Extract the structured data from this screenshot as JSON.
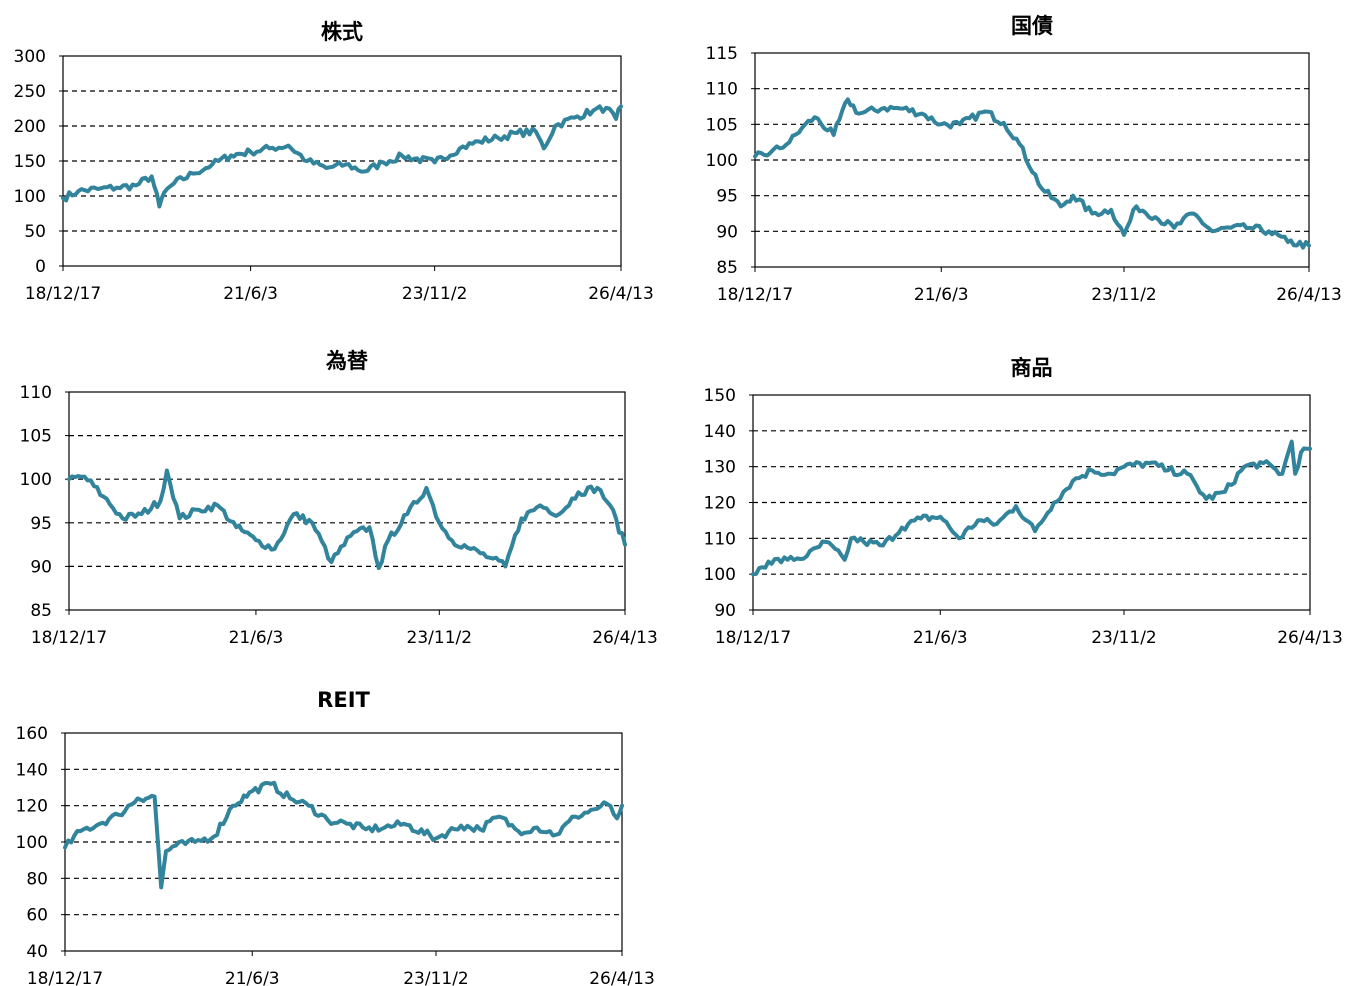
{
  "chart_data": [
    {
      "type": "line",
      "title": "株式",
      "ylim": [
        0,
        300
      ],
      "yticks": [
        "0",
        "50",
        "100",
        "150",
        "200",
        "250",
        "300"
      ],
      "xticks": [
        "18/12/17",
        "21/6/3",
        "23/11/2",
        "26/4/13"
      ],
      "grid": true,
      "color": "#31849B",
      "series": [
        {
          "x": [
            "18/12/17",
            "19/3/1",
            "19/6/1",
            "19/9/1",
            "19/12/1",
            "20/2/15",
            "20/3/23",
            "20/4/15",
            "20/6/1",
            "20/9/1",
            "20/12/1",
            "21/3/1",
            "21/6/3",
            "21/9/1",
            "21/12/1",
            "22/3/1",
            "22/6/1",
            "22/9/1",
            "22/12/1",
            "23/3/1",
            "23/6/1",
            "23/11/2",
            "24/3/1",
            "24/6/1",
            "24/9/1",
            "24/12/1",
            "25/3/1",
            "25/4/8",
            "25/6/1",
            "25/9/1",
            "25/12/1",
            "26/2/1",
            "26/3/20",
            "26/4/13"
          ],
          "values": [
            97,
            107,
            110,
            112,
            115,
            128,
            85,
            105,
            118,
            132,
            145,
            158,
            163,
            168,
            172,
            150,
            140,
            145,
            135,
            148,
            157,
            148,
            168,
            178,
            183,
            190,
            192,
            168,
            200,
            212,
            222,
            226,
            210,
            228
          ]
        }
      ]
    },
    {
      "type": "line",
      "title": "国債",
      "ylim": [
        85,
        115
      ],
      "yticks": [
        "85",
        "90",
        "95",
        "100",
        "105",
        "110",
        "115"
      ],
      "xticks": [
        "18/12/17",
        "21/6/3",
        "23/11/2",
        "26/4/13"
      ],
      "grid": true,
      "color": "#31849B",
      "series": [
        {
          "x": [
            "18/12/17",
            "19/3/1",
            "19/6/1",
            "19/8/1",
            "19/10/1",
            "20/1/1",
            "20/3/9",
            "20/5/1",
            "20/9/1",
            "20/12/1",
            "21/3/1",
            "21/6/3",
            "21/9/1",
            "22/1/1",
            "22/4/1",
            "22/6/1",
            "22/10/1",
            "23/1/1",
            "23/3/1",
            "23/6/1",
            "23/9/1",
            "23/11/2",
            "24/1/1",
            "24/4/1",
            "24/7/1",
            "24/10/1",
            "25/1/1",
            "25/4/1",
            "25/7/1",
            "25/10/1",
            "26/1/1",
            "26/4/13"
          ],
          "values": [
            100.5,
            101,
            102.5,
            104.5,
            106,
            103.5,
            108.5,
            106.5,
            107.3,
            107.2,
            106.5,
            105,
            105,
            106.8,
            105.2,
            103,
            96,
            93.5,
            95,
            92.5,
            93,
            89.5,
            93.5,
            92,
            90.5,
            92.5,
            90,
            90.5,
            90.5,
            90,
            88.5,
            88
          ]
        }
      ]
    },
    {
      "type": "line",
      "title": "為替",
      "ylim": [
        85,
        110
      ],
      "yticks": [
        "85",
        "90",
        "95",
        "100",
        "105",
        "110"
      ],
      "xticks": [
        "18/12/17",
        "21/6/3",
        "23/11/2",
        "26/4/13"
      ],
      "grid": true,
      "color": "#31849B",
      "series": [
        {
          "x": [
            "18/12/17",
            "19/3/1",
            "19/6/1",
            "19/9/1",
            "19/12/1",
            "20/3/1",
            "20/4/1",
            "20/6/1",
            "20/9/1",
            "20/12/1",
            "21/3/1",
            "21/6/3",
            "21/9/1",
            "21/12/1",
            "22/3/1",
            "22/6/1",
            "22/9/1",
            "22/12/1",
            "23/1/15",
            "23/3/1",
            "23/6/1",
            "23/9/1",
            "23/11/2",
            "24/1/1",
            "24/4/1",
            "24/7/1",
            "24/9/15",
            "24/12/1",
            "25/3/1",
            "25/6/1",
            "25/9/1",
            "25/12/1",
            "26/2/1",
            "26/4/13"
          ],
          "values": [
            100,
            100.3,
            98,
            95.5,
            96,
            97.5,
            101,
            95.5,
            96.5,
            97,
            94.5,
            93,
            92,
            96,
            95,
            90.5,
            93.5,
            94.5,
            89.8,
            93,
            96,
            99,
            95,
            93,
            92,
            91,
            90,
            95.5,
            97,
            96,
            98.5,
            99,
            97,
            92.5
          ]
        }
      ]
    },
    {
      "type": "line",
      "title": "商品",
      "ylim": [
        90,
        150
      ],
      "yticks": [
        "90",
        "100",
        "110",
        "120",
        "130",
        "140",
        "150"
      ],
      "xticks": [
        "18/12/17",
        "21/6/3",
        "23/11/2",
        "26/4/13"
      ],
      "grid": true,
      "color": "#31849B",
      "series": [
        {
          "x": [
            "18/12/17",
            "19/3/1",
            "19/6/1",
            "19/9/1",
            "19/12/1",
            "20/3/1",
            "20/4/1",
            "20/6/1",
            "20/9/1",
            "20/12/1",
            "21/3/1",
            "21/6/3",
            "21/9/1",
            "21/12/1",
            "22/3/1",
            "22/6/1",
            "22/9/1",
            "22/12/1",
            "23/3/1",
            "23/6/1",
            "23/9/1",
            "23/11/2",
            "24/3/1",
            "24/6/1",
            "24/9/1",
            "24/12/1",
            "25/3/1",
            "25/6/1",
            "25/9/1",
            "25/12/1",
            "26/1/15",
            "26/2/1",
            "26/3/1",
            "26/4/13"
          ],
          "values": [
            100,
            103.5,
            104,
            105,
            109,
            104,
            110,
            109,
            108,
            113,
            115.5,
            116,
            110,
            115,
            114,
            119,
            112,
            120,
            126,
            129,
            128,
            130,
            131,
            129,
            128,
            121,
            123,
            130,
            131,
            128,
            137,
            128,
            134,
            135
          ]
        }
      ]
    },
    {
      "type": "line",
      "title": "REIT",
      "ylim": [
        40,
        160
      ],
      "yticks": [
        "40",
        "60",
        "80",
        "100",
        "120",
        "140",
        "160"
      ],
      "xticks": [
        "18/12/17",
        "21/6/3",
        "23/11/2",
        "26/4/13"
      ],
      "grid": true,
      "color": "#31849B",
      "series": [
        {
          "x": [
            "18/12/17",
            "19/3/1",
            "19/6/1",
            "19/9/1",
            "19/12/1",
            "20/2/20",
            "20/3/23",
            "20/4/15",
            "20/6/1",
            "20/9/1",
            "20/12/1",
            "21/3/1",
            "21/6/3",
            "21/9/1",
            "21/12/1",
            "22/3/1",
            "22/6/1",
            "22/9/1",
            "22/12/1",
            "23/3/1",
            "23/6/1",
            "23/11/2",
            "24/3/1",
            "24/6/1",
            "24/9/1",
            "24/12/1",
            "25/3/1",
            "25/6/1",
            "25/9/1",
            "25/12/1",
            "26/2/1",
            "26/3/20",
            "26/4/13"
          ],
          "values": [
            97,
            106,
            110,
            115,
            124,
            125,
            75,
            95,
            98,
            100,
            103,
            120,
            128,
            132,
            124,
            120,
            112,
            110,
            107,
            108,
            110,
            102,
            109,
            107,
            114,
            106,
            108,
            104,
            114,
            118,
            121,
            113,
            120
          ]
        }
      ]
    }
  ]
}
